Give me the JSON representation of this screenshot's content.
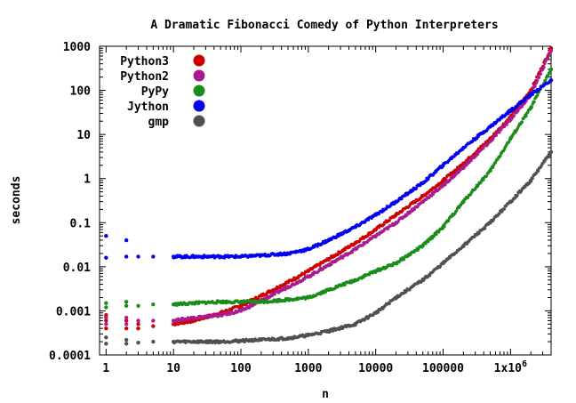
{
  "chart_data": {
    "type": "scatter",
    "title": "A Dramatic Fibonacci Comedy of Python Interpreters",
    "xlabel": "n",
    "ylabel": "seconds",
    "x_scale": "log",
    "y_scale": "log",
    "xlim": [
      0.8,
      4000000
    ],
    "ylim": [
      0.0001,
      1000
    ],
    "x_ticks": [
      {
        "value": 1,
        "label": "1"
      },
      {
        "value": 10,
        "label": "10"
      },
      {
        "value": 100,
        "label": "100"
      },
      {
        "value": 1000,
        "label": "1000"
      },
      {
        "value": 10000,
        "label": "10000"
      },
      {
        "value": 100000,
        "label": "100000"
      },
      {
        "value": 1000000,
        "label": "1x10",
        "sup": "6"
      }
    ],
    "y_ticks": [
      {
        "value": 0.0001,
        "label": "0.0001"
      },
      {
        "value": 0.001,
        "label": "0.001"
      },
      {
        "value": 0.01,
        "label": "0.01"
      },
      {
        "value": 0.1,
        "label": "0.1"
      },
      {
        "value": 1,
        "label": "1"
      },
      {
        "value": 10,
        "label": "10"
      },
      {
        "value": 100,
        "label": "100"
      },
      {
        "value": 1000,
        "label": "1000"
      }
    ],
    "legend_position": "top-left",
    "grid": false,
    "series": [
      {
        "name": "Python3",
        "color": "#cc0000",
        "points": [
          [
            1,
            0.0004
          ],
          [
            1,
            0.0006
          ],
          [
            1,
            0.0008
          ],
          [
            2,
            0.0004
          ],
          [
            2,
            0.0006
          ],
          [
            3,
            0.0004
          ],
          [
            3,
            0.0005
          ],
          [
            5,
            0.00045
          ],
          [
            10,
            0.0005
          ],
          [
            20,
            0.0006
          ],
          [
            50,
            0.0009
          ],
          [
            100,
            0.0013
          ],
          [
            200,
            0.0022
          ],
          [
            500,
            0.0045
          ],
          [
            1000,
            0.008
          ],
          [
            2000,
            0.015
          ],
          [
            5000,
            0.035
          ],
          [
            10000,
            0.07
          ],
          [
            20000,
            0.15
          ],
          [
            50000,
            0.4
          ],
          [
            100000,
            0.9
          ],
          [
            200000,
            2.2
          ],
          [
            500000,
            8
          ],
          [
            1000000,
            25
          ],
          [
            2000000,
            100
          ],
          [
            4000000,
            900
          ]
        ]
      },
      {
        "name": "Python2",
        "color": "#aa1c8e",
        "points": [
          [
            1,
            0.0005
          ],
          [
            1,
            0.0007
          ],
          [
            2,
            0.0005
          ],
          [
            2,
            0.0007
          ],
          [
            3,
            0.0006
          ],
          [
            5,
            0.0006
          ],
          [
            10,
            0.0006
          ],
          [
            20,
            0.0007
          ],
          [
            50,
            0.0008
          ],
          [
            100,
            0.001
          ],
          [
            200,
            0.0017
          ],
          [
            500,
            0.0035
          ],
          [
            1000,
            0.006
          ],
          [
            2000,
            0.011
          ],
          [
            5000,
            0.025
          ],
          [
            10000,
            0.05
          ],
          [
            20000,
            0.1
          ],
          [
            50000,
            0.3
          ],
          [
            100000,
            0.7
          ],
          [
            200000,
            1.8
          ],
          [
            500000,
            7
          ],
          [
            1000000,
            22
          ],
          [
            2000000,
            80
          ],
          [
            4000000,
            800
          ]
        ]
      },
      {
        "name": "PyPy",
        "color": "#1a8c1a",
        "points": [
          [
            1,
            0.0012
          ],
          [
            1,
            0.0015
          ],
          [
            2,
            0.0013
          ],
          [
            2,
            0.0016
          ],
          [
            3,
            0.0013
          ],
          [
            5,
            0.0014
          ],
          [
            10,
            0.0014
          ],
          [
            20,
            0.0015
          ],
          [
            50,
            0.0016
          ],
          [
            100,
            0.0016
          ],
          [
            200,
            0.0016
          ],
          [
            500,
            0.0018
          ],
          [
            1000,
            0.002
          ],
          [
            2000,
            0.003
          ],
          [
            5000,
            0.005
          ],
          [
            10000,
            0.008
          ],
          [
            20000,
            0.012
          ],
          [
            50000,
            0.03
          ],
          [
            100000,
            0.08
          ],
          [
            200000,
            0.3
          ],
          [
            500000,
            1.5
          ],
          [
            1000000,
            8
          ],
          [
            2000000,
            40
          ],
          [
            4000000,
            300
          ]
        ]
      },
      {
        "name": "Jython",
        "color": "#0000ee",
        "points": [
          [
            1,
            0.016
          ],
          [
            1,
            0.05
          ],
          [
            2,
            0.017
          ],
          [
            2,
            0.04
          ],
          [
            3,
            0.017
          ],
          [
            5,
            0.017
          ],
          [
            10,
            0.017
          ],
          [
            20,
            0.017
          ],
          [
            50,
            0.017
          ],
          [
            100,
            0.017
          ],
          [
            200,
            0.018
          ],
          [
            500,
            0.02
          ],
          [
            1000,
            0.025
          ],
          [
            2000,
            0.04
          ],
          [
            5000,
            0.08
          ],
          [
            10000,
            0.15
          ],
          [
            20000,
            0.3
          ],
          [
            50000,
            0.8
          ],
          [
            100000,
            2
          ],
          [
            200000,
            5
          ],
          [
            500000,
            15
          ],
          [
            1000000,
            35
          ],
          [
            2000000,
            80
          ],
          [
            4000000,
            170
          ]
        ]
      },
      {
        "name": "gmp",
        "color": "#505050",
        "points": [
          [
            1,
            0.00018
          ],
          [
            1,
            0.00025
          ],
          [
            2,
            0.00018
          ],
          [
            2,
            0.00022
          ],
          [
            3,
            0.00019
          ],
          [
            5,
            0.0002
          ],
          [
            10,
            0.0002
          ],
          [
            20,
            0.0002
          ],
          [
            50,
            0.0002
          ],
          [
            100,
            0.00021
          ],
          [
            200,
            0.00022
          ],
          [
            500,
            0.00024
          ],
          [
            1000,
            0.00028
          ],
          [
            2000,
            0.00035
          ],
          [
            5000,
            0.0005
          ],
          [
            10000,
            0.0009
          ],
          [
            20000,
            0.002
          ],
          [
            50000,
            0.005
          ],
          [
            100000,
            0.012
          ],
          [
            200000,
            0.03
          ],
          [
            500000,
            0.1
          ],
          [
            1000000,
            0.3
          ],
          [
            2000000,
            0.9
          ],
          [
            4000000,
            4
          ]
        ]
      }
    ]
  }
}
